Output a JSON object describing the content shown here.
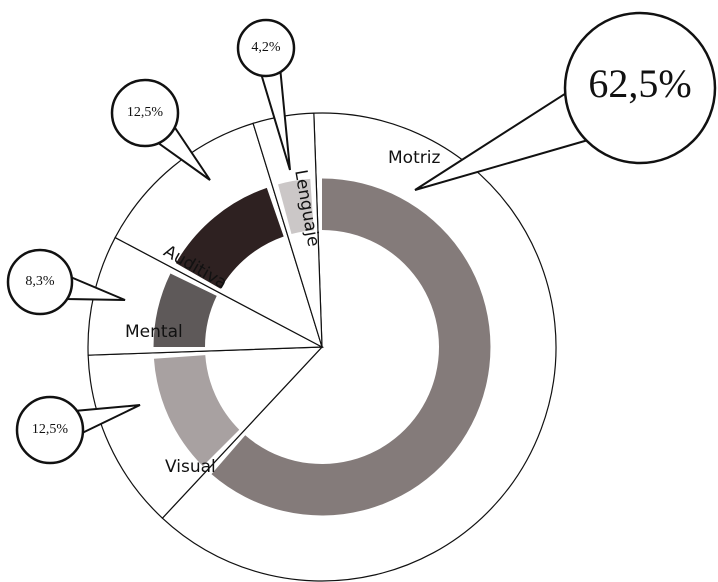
{
  "chart_data": {
    "type": "pie",
    "categories": [
      "Motriz",
      "Visual",
      "Mental",
      "Auditiva",
      "Lenguaje"
    ],
    "values": [
      62.5,
      12.5,
      8.3,
      12.5,
      4.2
    ],
    "value_labels": [
      "62,5%",
      "12,5%",
      "8,3%",
      "12,5%",
      "4,2%"
    ],
    "colors": [
      "#7d7473",
      "#a39c9c",
      "#555050",
      "#231515",
      "#c8c4c4"
    ]
  }
}
